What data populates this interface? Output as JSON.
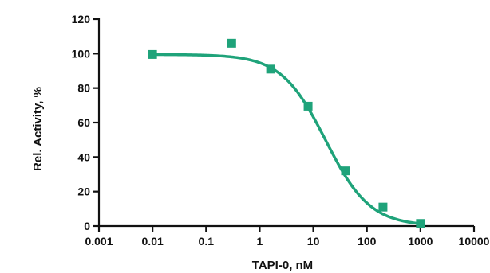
{
  "chart_data": {
    "type": "scatter",
    "title": "",
    "xlabel": "TAPI-0, nM",
    "ylabel": "Rel. Activity, %",
    "x_scale": "log",
    "xlim": [
      0.001,
      10000
    ],
    "ylim": [
      0,
      120
    ],
    "x_ticks": [
      0.001,
      0.01,
      0.1,
      1,
      10,
      100,
      1000,
      10000
    ],
    "x_tick_labels": [
      "0.001",
      "0.01",
      "0.1",
      "1",
      "10",
      "100",
      "1000",
      "10000"
    ],
    "y_ticks": [
      0,
      20,
      40,
      60,
      80,
      100,
      120
    ],
    "y_tick_labels": [
      "0",
      "20",
      "40",
      "60",
      "80",
      "100",
      "120"
    ],
    "grid": false,
    "legend": "none",
    "series": [
      {
        "marker": "square",
        "color": "#1fa37a",
        "x": [
          0.01,
          0.3,
          1.6,
          8,
          40,
          200,
          1000
        ],
        "y": [
          99.5,
          106,
          91,
          69.5,
          32,
          11,
          1.5
        ]
      }
    ],
    "fit_curve": {
      "model": "four-parameter logistic",
      "color": "#1fa37a",
      "top": 99.5,
      "bottom": 0,
      "ic50": 17,
      "hill": 1.05
    }
  }
}
